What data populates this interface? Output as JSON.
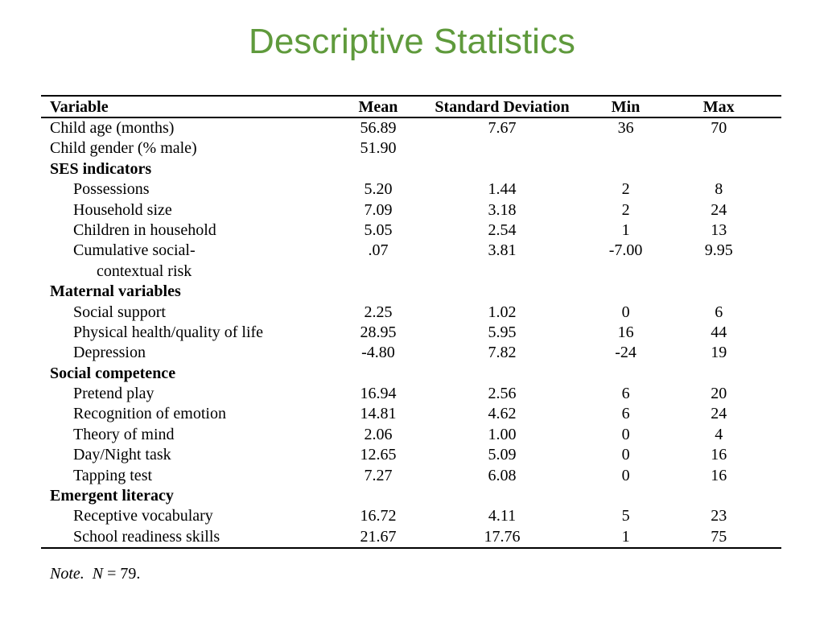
{
  "title": "Descriptive Statistics",
  "table": {
    "headers": [
      "Variable",
      "Mean",
      "Standard Deviation",
      "Min",
      "Max"
    ],
    "rows": [
      {
        "type": "data",
        "level": 0,
        "variable": "Child age (months)",
        "mean": "56.89",
        "sd": "7.67",
        "min": "36",
        "max": "70"
      },
      {
        "type": "data",
        "level": 0,
        "variable": "Child gender (% male)",
        "mean": "51.90",
        "sd": "",
        "min": "",
        "max": ""
      },
      {
        "type": "section",
        "variable": "SES indicators"
      },
      {
        "type": "data",
        "level": 1,
        "variable": "Possessions",
        "mean": "5.20",
        "sd": "1.44",
        "min": "2",
        "max": "8"
      },
      {
        "type": "data",
        "level": 1,
        "variable": "Household size",
        "mean": "7.09",
        "sd": "3.18",
        "min": "2",
        "max": "24"
      },
      {
        "type": "data",
        "level": 1,
        "variable": "Children in household",
        "mean": "5.05",
        "sd": "2.54",
        "min": "1",
        "max": "13"
      },
      {
        "type": "data",
        "level": 1,
        "variable": "Cumulative social-",
        "mean": ".07",
        "sd": "3.81",
        "min": "-7.00",
        "max": "9.95"
      },
      {
        "type": "data",
        "level": 2,
        "variable": "contextual risk",
        "mean": "",
        "sd": "",
        "min": "",
        "max": ""
      },
      {
        "type": "section",
        "variable": "Maternal variables"
      },
      {
        "type": "data",
        "level": 1,
        "variable": "Social support",
        "mean": "2.25",
        "sd": "1.02",
        "min": "0",
        "max": "6"
      },
      {
        "type": "data",
        "level": 1,
        "variable": "Physical health/quality of life",
        "mean": "28.95",
        "sd": "5.95",
        "min": "16",
        "max": "44"
      },
      {
        "type": "data",
        "level": 1,
        "variable": "Depression",
        "mean": "-4.80",
        "sd": "7.82",
        "min": "-24",
        "max": "19"
      },
      {
        "type": "section",
        "variable": "Social competence"
      },
      {
        "type": "data",
        "level": 1,
        "variable": "Pretend play",
        "mean": "16.94",
        "sd": "2.56",
        "min": "6",
        "max": "20"
      },
      {
        "type": "data",
        "level": 1,
        "variable": "Recognition of emotion",
        "mean": "14.81",
        "sd": "4.62",
        "min": "6",
        "max": "24"
      },
      {
        "type": "data",
        "level": 1,
        "variable": "Theory of mind",
        "mean": "2.06",
        "sd": "1.00",
        "min": "0",
        "max": "4"
      },
      {
        "type": "data",
        "level": 1,
        "variable": "Day/Night task",
        "mean": "12.65",
        "sd": "5.09",
        "min": "0",
        "max": "16"
      },
      {
        "type": "data",
        "level": 1,
        "variable": "Tapping test",
        "mean": "7.27",
        "sd": "6.08",
        "min": "0",
        "max": "16"
      },
      {
        "type": "section",
        "variable": "Emergent literacy"
      },
      {
        "type": "data",
        "level": 1,
        "variable": "Receptive vocabulary",
        "mean": "16.72",
        "sd": "4.11",
        "min": "5",
        "max": "23"
      },
      {
        "type": "data",
        "level": 1,
        "variable": "School readiness skills",
        "mean": "21.67",
        "sd": "17.76",
        "min": "1",
        "max": "75"
      }
    ]
  },
  "note": {
    "label": "Note.",
    "n_symbol": "N",
    "n_text": " = 79."
  }
}
